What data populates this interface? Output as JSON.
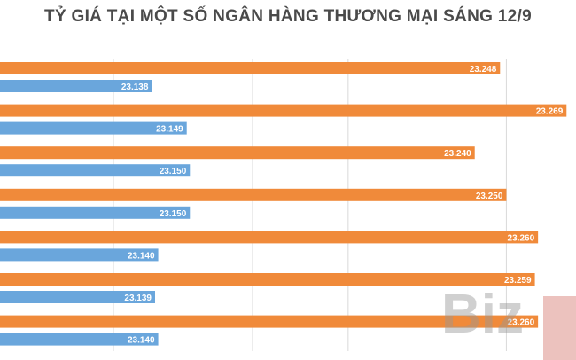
{
  "title": "TỶ GIÁ TẠI MỘT SỐ NGÂN HÀNG THƯƠNG MẠI SÁNG 12/9",
  "watermark": "Biz",
  "colors": {
    "sell": "#f08a3a",
    "buy": "#6aa6dc",
    "grid": "#d9d9d9",
    "label": "#ffffff"
  },
  "chart_data": {
    "type": "bar",
    "orientation": "horizontal",
    "categories": [
      "",
      "",
      "",
      "",
      "",
      "",
      ""
    ],
    "series": [
      {
        "values": [
          23248,
          23269,
          23240,
          23250,
          23260,
          23259,
          23260
        ],
        "labels": [
          "23.248",
          "23.269",
          "23.240",
          "23.250",
          "23.260",
          "23.259",
          "23.260"
        ]
      },
      {
        "values": [
          23138,
          23149,
          23150,
          23150,
          23140,
          23139,
          23140
        ],
        "labels": [
          "23.138",
          "23.149",
          "23.150",
          "23.150",
          "23.140",
          "23.139",
          "23.140"
        ]
      }
    ],
    "xlim": [
      23090,
      23272
    ],
    "grid": true,
    "legend": "none"
  }
}
